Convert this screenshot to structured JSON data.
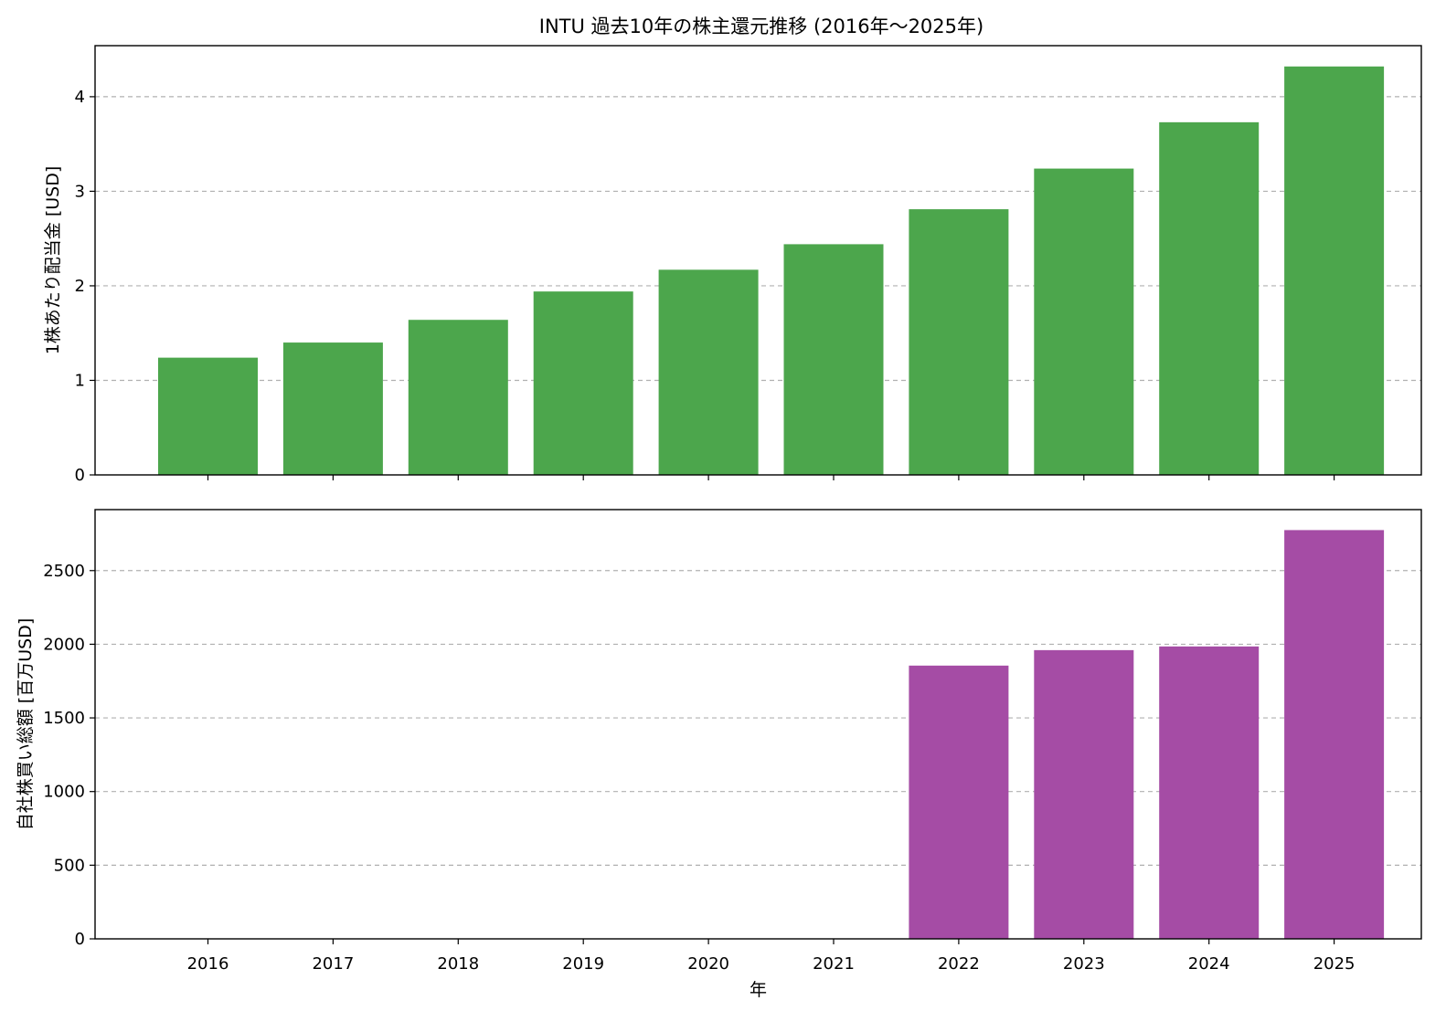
{
  "title": "INTU 過去10年の株主還元推移 (2016年～2025年)",
  "chart_data": [
    {
      "type": "bar",
      "categories": [
        "2016",
        "2017",
        "2018",
        "2019",
        "2020",
        "2021",
        "2022",
        "2023",
        "2024",
        "2025"
      ],
      "values": [
        1.24,
        1.4,
        1.64,
        1.94,
        2.17,
        2.44,
        2.81,
        3.24,
        3.73,
        4.32
      ],
      "xlabel": "",
      "ylabel": "1株あたり配当金 [USD]",
      "ylim": [
        0,
        4.54
      ],
      "yticks": [
        "0",
        "1",
        "2",
        "3",
        "4"
      ],
      "grid": "y-dashed",
      "color": "#4ca64c"
    },
    {
      "type": "bar",
      "categories": [
        "2016",
        "2017",
        "2018",
        "2019",
        "2020",
        "2021",
        "2022",
        "2023",
        "2024",
        "2025"
      ],
      "values": [
        0,
        0,
        0,
        0,
        0,
        0,
        1855,
        1960,
        1985,
        2775
      ],
      "xlabel": "年",
      "ylabel": "自社株買い総額 [百万USD]",
      "ylim": [
        0,
        2914
      ],
      "yticks": [
        "0",
        "500",
        "1000",
        "1500",
        "2000",
        "2500"
      ],
      "grid": "y-dashed",
      "color": "#a54ca5"
    }
  ]
}
